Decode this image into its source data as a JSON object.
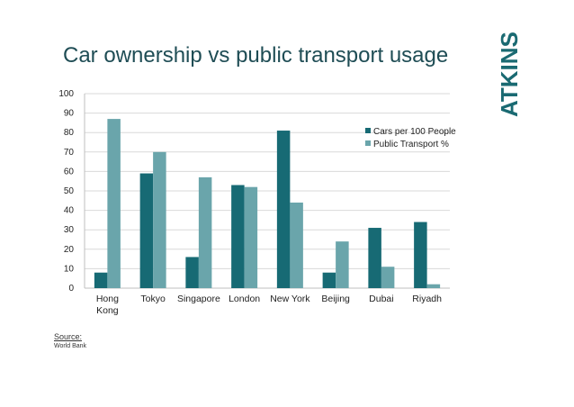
{
  "slide": {
    "title": "Car ownership vs public transport usage",
    "logo": "ATKINS",
    "source_label": "Source:",
    "source_text": "World Bank"
  },
  "colors": {
    "cars": "#176a74",
    "transport": "#6aa5ab",
    "grid": "#d9d9d9",
    "axis": "#bfbfbf",
    "logo": "#1a6a72"
  },
  "chart_data": {
    "type": "bar",
    "title": "",
    "xlabel": "",
    "ylabel": "",
    "categories": [
      [
        "Hong",
        "Kong"
      ],
      [
        "Tokyo"
      ],
      [
        "Singapore"
      ],
      [
        "London"
      ],
      [
        "New York"
      ],
      [
        "Beijing"
      ],
      [
        "Dubai"
      ],
      [
        "Riyadh"
      ]
    ],
    "series": [
      {
        "name": "Cars per 100 People",
        "values": [
          8,
          59,
          16,
          53,
          81,
          8,
          31,
          34
        ]
      },
      {
        "name": "Public Transport %",
        "values": [
          87,
          70,
          57,
          52,
          44,
          24,
          11,
          2
        ]
      }
    ],
    "ylim": [
      0,
      100
    ],
    "yticks": [
      0,
      10,
      20,
      30,
      40,
      50,
      60,
      70,
      80,
      90,
      100
    ],
    "grid": true,
    "legend_position": "top-right"
  }
}
